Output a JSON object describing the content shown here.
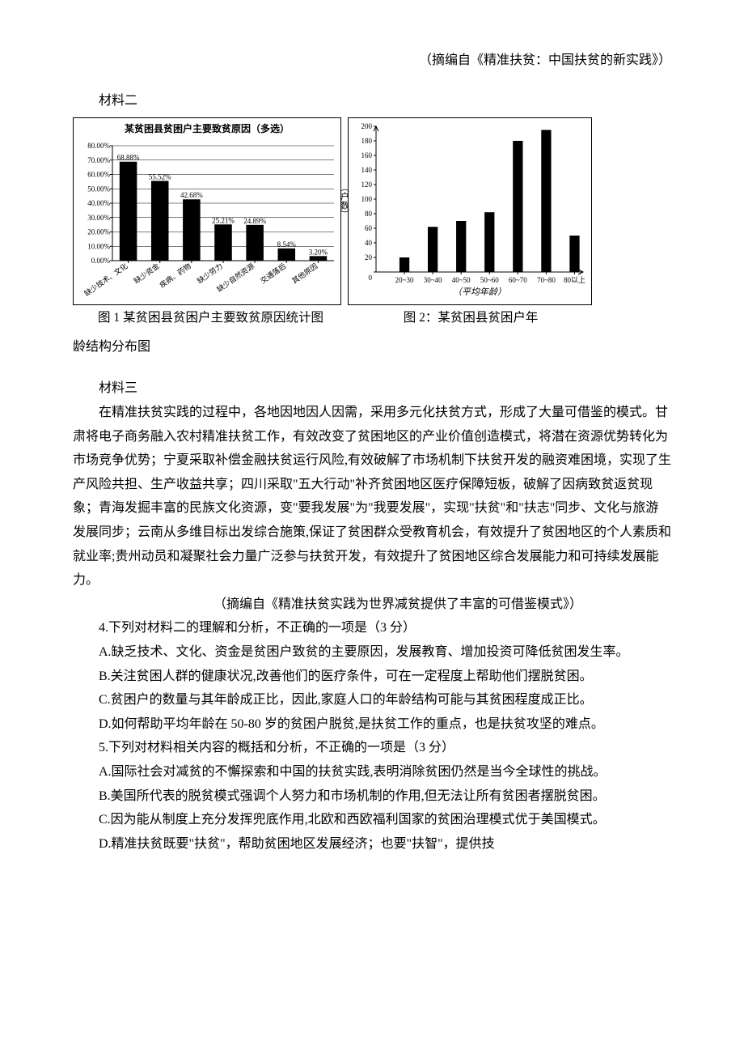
{
  "source_top": "（摘编自《精准扶贫：中国扶贫的新实践》）",
  "section2_title": "材料二",
  "chart1": {
    "type": "bar",
    "inner_title": "某贫困县贫困户主要致贫原因（多选）",
    "ylim": [
      0,
      80
    ],
    "ytick_step": 10,
    "ytick_format_suffix": ".00%",
    "categories": [
      "缺少技术、文化",
      "缺少资金",
      "疾病、药物",
      "缺少劳力",
      "缺少自然资源",
      "交通落后",
      "其他原因"
    ],
    "values": [
      68.88,
      55.52,
      42.68,
      25.21,
      24.89,
      8.54,
      3.2
    ],
    "value_labels": [
      "68.88%",
      "55.52%",
      "42.68%",
      "25.21%",
      "24.89%",
      "8.54%",
      "3.20%"
    ],
    "bar_color": "#000000",
    "background_color": "#ffffff",
    "grid_color": "#000000",
    "axis_fontsize": 9,
    "label_fontsize": 9,
    "bar_width": 0.55
  },
  "chart2": {
    "type": "bar",
    "ylabel": "（户数）",
    "xlabel": "（平均年龄）",
    "ylim": [
      0,
      200
    ],
    "ytick_step": 20,
    "categories": [
      "20~30",
      "30~40",
      "40~50",
      "50~60",
      "60~70",
      "70~80",
      "80以上"
    ],
    "values": [
      20,
      62,
      70,
      82,
      180,
      195,
      50
    ],
    "bar_color": "#000000",
    "background_color": "#ffffff",
    "axis_fontsize": 9,
    "bar_width": 0.35
  },
  "caption1": "图 1 某贫困县贫困户主要致贫原因统计图",
  "caption2_a": "图 2：某贫困县贫困户年",
  "caption2_b": "龄结构分布图",
  "section3_title": "材料三",
  "section3_body": "在精准扶贫实践的过程中，各地因地因人因需，采用多元化扶贫方式，形成了大量可借鉴的模式。甘肃将电子商务融入农村精准扶贫工作，有效改变了贫困地区的产业价值创造模式，将潜在资源优势转化为市场竞争优势；宁夏采取补偿金融扶贫运行风险,有效破解了市场机制下扶贫开发的融资难困境，实现了生产风险共担、生产收益共享；四川采取\"五大行动\"补齐贫困地区医疗保障短板，破解了因病致贫返贫现象；青海发掘丰富的民族文化资源，变\"要我发展\"为\"我要发展\"，实现\"扶贫\"和\"扶志\"同步、文化与旅游发展同步；云南从多维目标出发综合施策,保证了贫困群众受教育机会，有效提升了贫困地区的个人素质和就业率;贵州动员和凝聚社会力量广泛参与扶贫开发，有效提升了贫困地区综合发展能力和可持续发展能力。",
  "source3": "（摘编自《精准扶贫实践为世界减贫提供了丰富的可借鉴模式》）",
  "q4": {
    "stem": "4.下列对材料二的理解和分析，不正确的一项是（3 分）",
    "A": "A.缺乏技术、文化、资金是贫困户致贫的主要原因，发展教育、增加投资可降低贫困发生率。",
    "B": "B.关注贫困人群的健康状况,改善他们的医疗条件，可在一定程度上帮助他们摆脱贫困。",
    "C": "C.贫困户的数量与其年龄成正比，因此,家庭人口的年龄结构可能与其贫困程度成正比。",
    "D": "D.如何帮助平均年龄在 50-80 岁的贫困户脱贫,是扶贫工作的重点，也是扶贫攻坚的难点。"
  },
  "q5": {
    "stem": "5.下列对材料相关内容的概括和分析，不正确的一项是（3 分）",
    "A": "A.国际社会对减贫的不懈探索和中国的扶贫实践,表明消除贫困仍然是当今全球性的挑战。",
    "B": "B.美国所代表的脱贫模式强调个人努力和市场机制的作用,但无法让所有贫困者摆脱贫困。",
    "C": "C.因为能从制度上充分发挥兜底作用,北欧和西欧福利国家的贫困治理模式优于美国模式。",
    "D": "D.精准扶贫既要\"扶贫\"，帮助贫困地区发展经济；也要\"扶智\"，提供技"
  }
}
